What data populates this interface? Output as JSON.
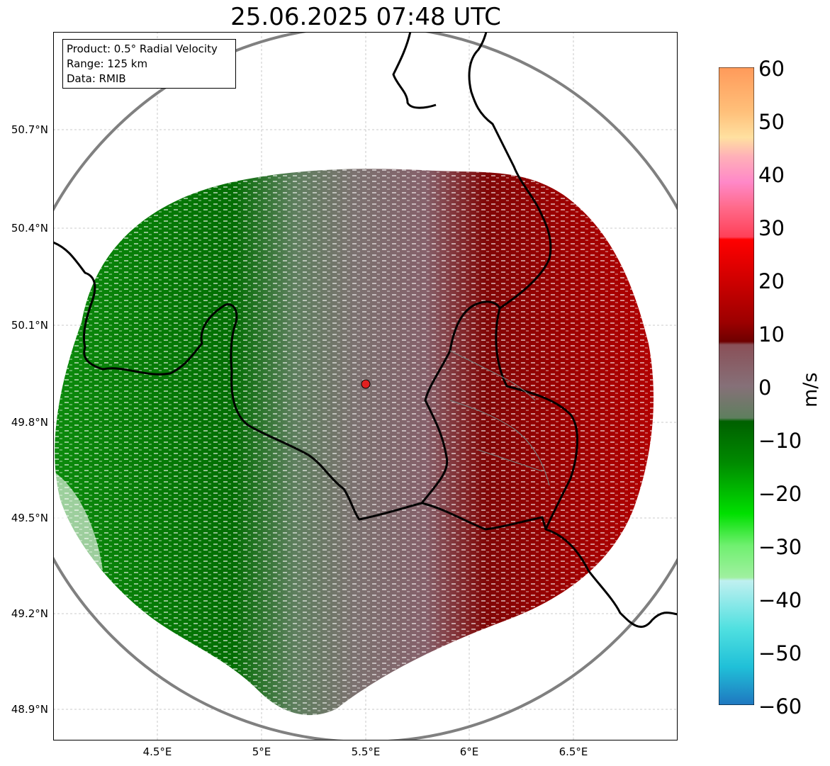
{
  "title": "25.06.2025 07:48 UTC",
  "info": {
    "product": "Product: 0.5° Radial Velocity",
    "range": "Range: 125 km",
    "data": "Data: RMIB"
  },
  "lat_ticks": [
    "50.7°N",
    "50.4°N",
    "50.1°N",
    "49.8°N",
    "49.5°N",
    "49.2°N",
    "48.9°N"
  ],
  "lon_ticks": [
    "4.5°E",
    "5°E",
    "5.5°E",
    "6°E",
    "6.5°E"
  ],
  "colorbar": {
    "unit": "m/s",
    "ticks": [
      "60",
      "50",
      "40",
      "30",
      "20",
      "10",
      "0",
      "−10",
      "−20",
      "−30",
      "−40",
      "−50",
      "−60"
    ],
    "range": [
      -60,
      60
    ]
  },
  "radar_site": {
    "lon": 5.5,
    "lat": 49.92
  },
  "colors": {
    "inbound_dark": "#006400",
    "inbound_mid": "#0a8a0a",
    "near_zero_green": "#5f7f5f",
    "near_zero_red": "#856570",
    "outbound_dark": "#7a0000",
    "outbound_mid": "#a80000",
    "range_ring": "#808080",
    "site_marker": "#e02020"
  }
}
